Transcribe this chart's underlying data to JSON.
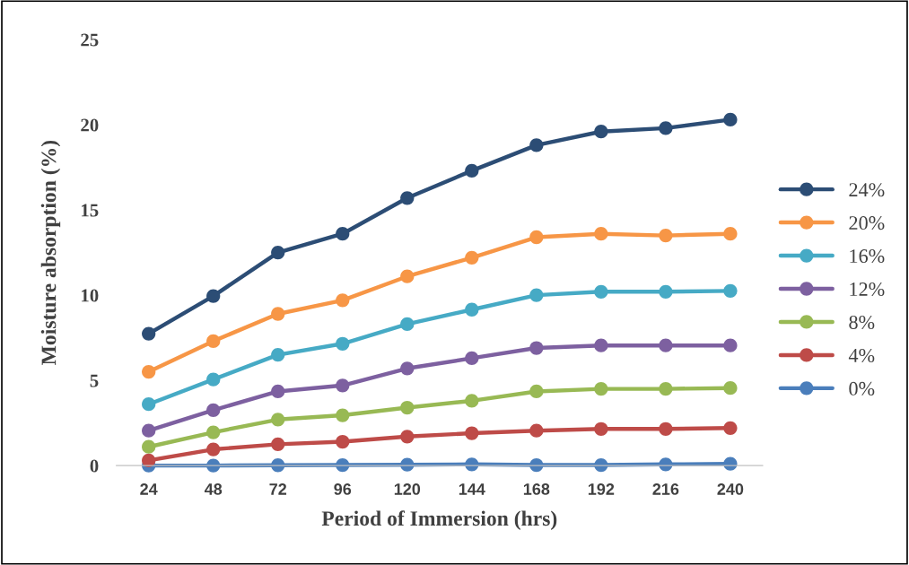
{
  "chart_data": {
    "type": "line",
    "xlabel": "Period of Immersion (hrs)",
    "ylabel": "Moisture absorption (%)",
    "categories": [
      "24",
      "48",
      "72",
      "96",
      "120",
      "144",
      "168",
      "192",
      "216",
      "240"
    ],
    "series": [
      {
        "name": "0%",
        "color": "#4a7ebb",
        "values": [
          0,
          0,
          0.02,
          0.03,
          0.05,
          0.07,
          0.03,
          0.03,
          0.07,
          0.1
        ]
      },
      {
        "name": "4%",
        "color": "#be4b48",
        "values": [
          0.3,
          0.95,
          1.25,
          1.4,
          1.7,
          1.9,
          2.05,
          2.15,
          2.15,
          2.2
        ]
      },
      {
        "name": "8%",
        "color": "#98b954",
        "values": [
          1.1,
          1.95,
          2.7,
          2.95,
          3.4,
          3.8,
          4.35,
          4.5,
          4.5,
          4.55
        ]
      },
      {
        "name": "12%",
        "color": "#7d60a0",
        "values": [
          2.05,
          3.25,
          4.35,
          4.7,
          5.7,
          6.3,
          6.9,
          7.05,
          7.05,
          7.05
        ]
      },
      {
        "name": "16%",
        "color": "#46aac5",
        "values": [
          3.6,
          5.05,
          6.5,
          7.15,
          8.3,
          9.15,
          10.0,
          10.2,
          10.2,
          10.25
        ]
      },
      {
        "name": "20%",
        "color": "#f79646",
        "values": [
          5.5,
          7.3,
          8.9,
          9.7,
          11.1,
          12.2,
          13.4,
          13.6,
          13.5,
          13.6
        ]
      },
      {
        "name": "24%",
        "color": "#2c4d75",
        "values": [
          7.74,
          9.95,
          12.5,
          13.6,
          15.7,
          17.3,
          18.8,
          19.6,
          19.8,
          20.3
        ]
      }
    ],
    "ylim": [
      0,
      25
    ],
    "yticks": [
      0,
      5,
      10,
      15,
      20,
      25
    ],
    "grid": false,
    "legend": "right",
    "marker": "circle",
    "line_style": "solid"
  }
}
